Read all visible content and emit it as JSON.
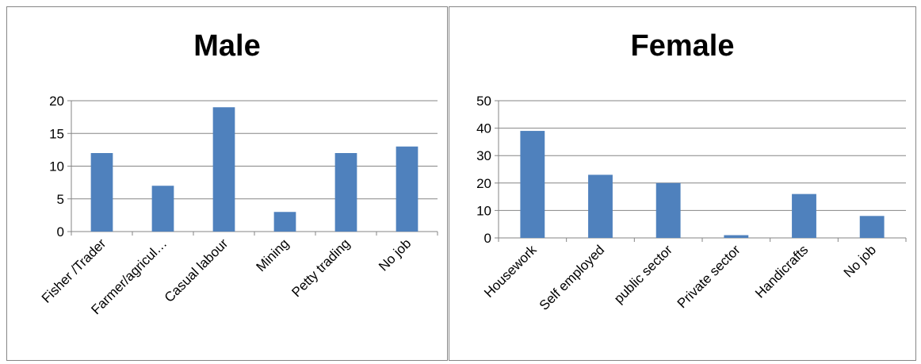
{
  "chart_data": [
    {
      "type": "bar",
      "title": "Male",
      "categories": [
        "Fisher /Trader",
        "Farmer/agricul…",
        "Casual labour",
        "Mining",
        "Petty trading",
        "No job"
      ],
      "values": [
        12,
        7,
        19,
        3,
        12,
        13
      ],
      "ylim": [
        0,
        20
      ],
      "yticks": [
        0,
        5,
        10,
        15,
        20
      ],
      "grid": true,
      "legend": "none",
      "bar_color": "#4f81bd"
    },
    {
      "type": "bar",
      "title": "Female",
      "categories": [
        "Housework",
        "Self employed",
        "public sector",
        "Private sector",
        "Handicrafts",
        "No job"
      ],
      "values": [
        39,
        23,
        20,
        1,
        16,
        8
      ],
      "ylim": [
        0,
        50
      ],
      "yticks": [
        0,
        10,
        20,
        30,
        40,
        50
      ],
      "grid": true,
      "legend": "none",
      "bar_color": "#4f81bd"
    }
  ]
}
